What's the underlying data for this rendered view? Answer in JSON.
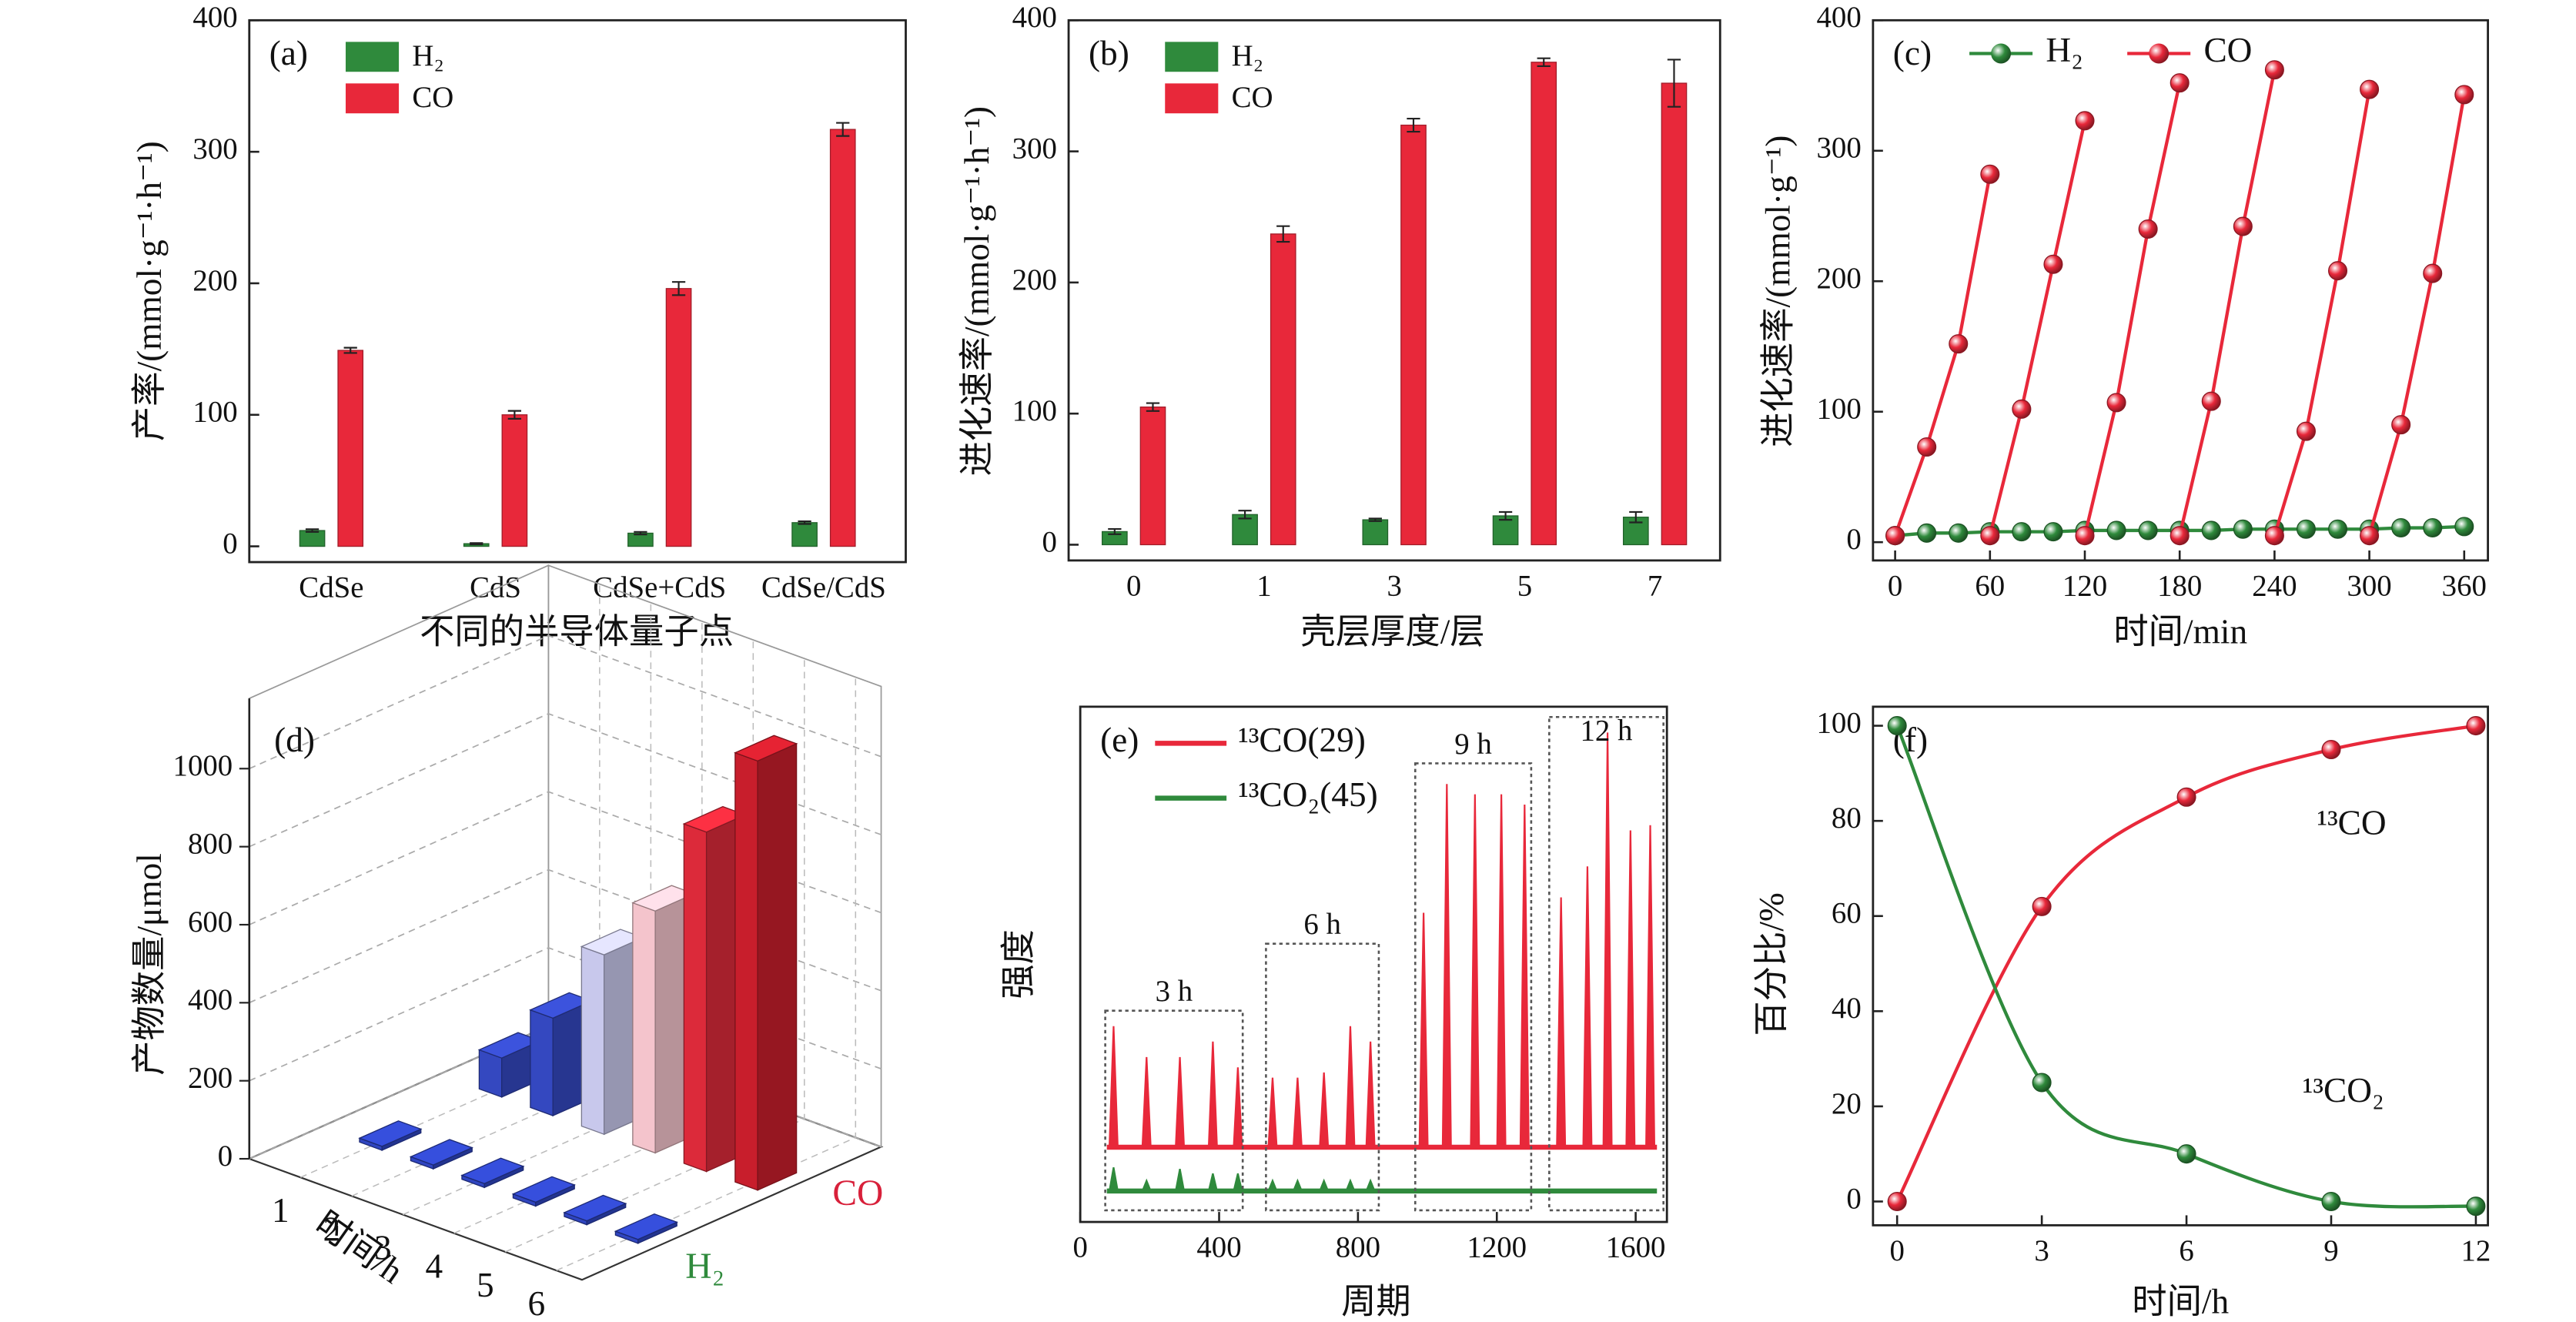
{
  "chart_data": [
    {
      "type": "bar",
      "panel": "(a)",
      "categories": [
        "CdSe",
        "CdS",
        "CdSe+CdS",
        "CdSe/CdS"
      ],
      "series": [
        {
          "name": "H₂",
          "color": "#2f8a3c",
          "values": [
            12,
            2,
            10,
            18
          ],
          "errors": [
            1,
            0.5,
            1,
            1
          ]
        },
        {
          "name": "CO",
          "color": "#e8283a",
          "values": [
            149,
            100,
            196,
            317
          ],
          "errors": [
            2,
            3,
            5,
            5
          ]
        }
      ],
      "ylim": [
        -12,
        400
      ],
      "yticks": [
        0,
        100,
        200,
        300,
        400
      ],
      "ylabel": "产率/(mmol·g⁻¹·h⁻¹)",
      "xlabel": "不同的半导体量子点"
    },
    {
      "type": "bar",
      "panel": "(b)",
      "categories": [
        "0",
        "1",
        "3",
        "5",
        "7"
      ],
      "series": [
        {
          "name": "H₂",
          "color": "#2f8a3c",
          "values": [
            10,
            23,
            19,
            22,
            21
          ],
          "errors": [
            2,
            3,
            1,
            3,
            4
          ]
        },
        {
          "name": "CO",
          "color": "#e8283a",
          "values": [
            105,
            237,
            320,
            368,
            352
          ],
          "errors": [
            3,
            6,
            5,
            3,
            18
          ]
        }
      ],
      "ylim": [
        -12,
        400
      ],
      "yticks": [
        0,
        100,
        200,
        300,
        400
      ],
      "ylabel": "进化速率/(mmol·g⁻¹·h⁻¹)",
      "xlabel": "壳层厚度/层"
    },
    {
      "type": "line",
      "panel": "(c)",
      "series": [
        {
          "name": "H₂",
          "color": "#2f8a3c",
          "x": [
            0,
            20,
            40,
            60,
            80,
            100,
            120,
            140,
            160,
            180,
            200,
            220,
            240,
            260,
            280,
            300,
            320,
            340,
            360
          ],
          "values": [
            5,
            7,
            7,
            8,
            8,
            8,
            9,
            9,
            9,
            9,
            9,
            10,
            10,
            10,
            10,
            10,
            11,
            11,
            12
          ]
        },
        {
          "name": "CO",
          "color": "#e8283a",
          "x": [
            0,
            20,
            40,
            60,
            null,
            60,
            80,
            100,
            120,
            null,
            120,
            140,
            160,
            180,
            null,
            180,
            200,
            220,
            240,
            null,
            240,
            260,
            280,
            300,
            null,
            300,
            320,
            340,
            360
          ],
          "values": [
            5,
            73,
            152,
            282,
            null,
            5,
            102,
            213,
            323,
            null,
            5,
            107,
            240,
            352,
            null,
            5,
            108,
            242,
            362,
            null,
            5,
            85,
            208,
            347,
            null,
            5,
            90,
            206,
            343
          ]
        }
      ],
      "xlim": [
        -14,
        375
      ],
      "xticks": [
        0,
        60,
        120,
        180,
        240,
        300,
        360
      ],
      "ylim": [
        -14,
        400
      ],
      "yticks": [
        0,
        100,
        200,
        300,
        400
      ],
      "xlabel": "时间/min",
      "ylabel": "进化速率/(mmol·g⁻¹)"
    },
    {
      "type": "bar3d",
      "panel": "(d)",
      "categories": [
        "1",
        "2",
        "3",
        "4",
        "5",
        "6"
      ],
      "series": [
        {
          "name": "H₂",
          "color": "#2f45c0",
          "values": [
            10,
            10,
            10,
            10,
            10,
            10
          ]
        },
        {
          "name": "CO",
          "colors": [
            "#3448c0",
            "#3448c0",
            "#c8c8ec",
            "#f4c4cc",
            "#dc2a3a",
            "#c81e2c"
          ],
          "values": [
            100,
            250,
            460,
            620,
            870,
            1100
          ]
        }
      ],
      "zlim": [
        0,
        1180
      ],
      "zticks": [
        0,
        200,
        400,
        600,
        800,
        1000
      ],
      "grid": true,
      "xlabel": "时间/h",
      "zlabel": "产物数量/μmol"
    },
    {
      "type": "peaks",
      "panel": "(e)",
      "series": [
        {
          "name": "¹³CO(29)",
          "color": "#e8283a",
          "baseline": 14.5,
          "x": [
            96,
            191,
            287,
            382,
            454,
            554,
            626,
            702,
            778,
            836,
            989,
            1056,
            1137,
            1213,
            1280,
            1385,
            1461,
            1519,
            1585,
            1642
          ],
          "values": [
            38,
            32,
            32,
            35,
            30,
            28,
            28,
            29,
            38,
            35,
            60,
            85,
            83,
            83,
            81,
            63,
            69,
            95,
            76,
            77
          ]
        },
        {
          "name": "¹³CO₂(45)",
          "color": "#2f8a3c",
          "baseline": 6,
          "x": [
            96,
            191,
            287,
            382,
            454,
            554,
            626,
            702,
            778,
            836
          ],
          "values": [
            10.6,
            8,
            10.3,
            9.4,
            9.4,
            8,
            8,
            8,
            8,
            8
          ]
        }
      ],
      "regions": [
        {
          "label": "3 h",
          "x": [
            72,
            468
          ],
          "top": 41
        },
        {
          "label": "6 h",
          "x": [
            535,
            860
          ],
          "top": 54
        },
        {
          "label": "9 h",
          "x": [
            965,
            1299
          ],
          "top": 89
        },
        {
          "label": "12 h",
          "x": [
            1351,
            1680
          ],
          "top": 98
        }
      ],
      "xlim": [
        0,
        1690
      ],
      "xticks": [
        0,
        400,
        800,
        1200,
        1600
      ],
      "ylim": [
        0,
        100
      ],
      "xlabel": "周期",
      "ylabel": "强度"
    },
    {
      "type": "line",
      "panel": "(f)",
      "smooth": true,
      "legend": false,
      "x": [
        0,
        3,
        6,
        9,
        12
      ],
      "series": [
        {
          "name": "¹³CO",
          "color": "#e8283a",
          "values": [
            0,
            62,
            85,
            95,
            100
          ]
        },
        {
          "name": "¹³CO₂",
          "color": "#2f8a3c",
          "values": [
            100,
            25,
            10,
            0,
            -1
          ]
        }
      ],
      "xlim": [
        -0.5,
        12.25
      ],
      "xticks": [
        0,
        3,
        6,
        9,
        12
      ],
      "ylim": [
        -5,
        104
      ],
      "yticks": [
        0,
        20,
        40,
        60,
        80,
        100
      ],
      "xlabel": "时间/h",
      "ylabel": "百分比/%"
    }
  ]
}
